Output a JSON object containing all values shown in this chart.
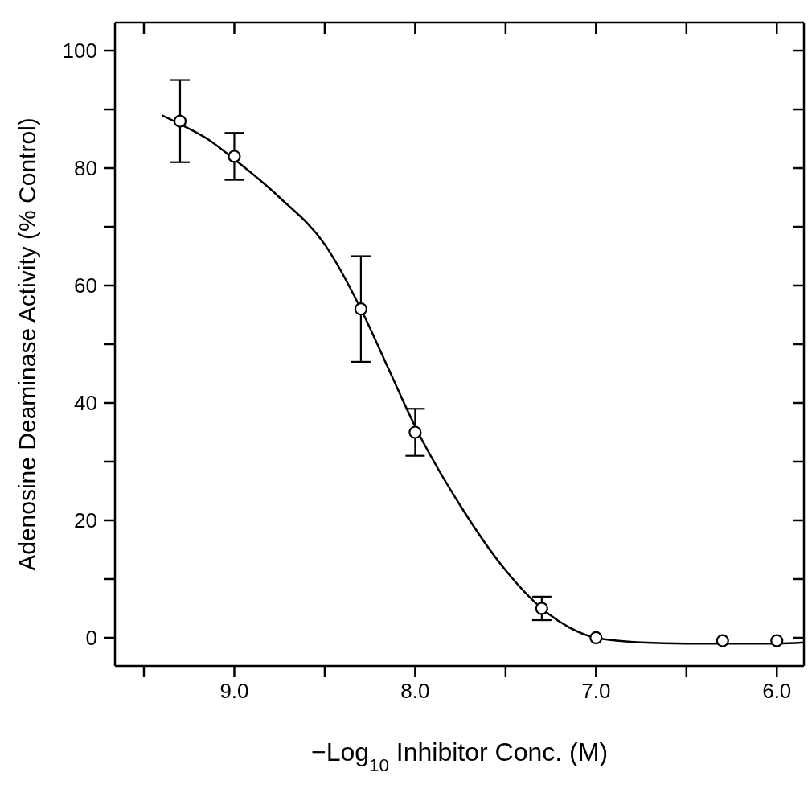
{
  "chart_data": {
    "type": "scatter",
    "xlabel": "−Log$_{10}$ Inhibitor Conc. (M)",
    "ylabel": "Adenosine Deaminase Activity (% Control)",
    "xlim": [
      9.66,
      5.85
    ],
    "xticks": [
      {
        "value": 9.5,
        "label": null
      },
      {
        "value": 9,
        "label": "9.0"
      },
      {
        "value": 8.5,
        "label": null
      },
      {
        "value": 8,
        "label": "8.0"
      },
      {
        "value": 7.5,
        "label": null
      },
      {
        "value": 7,
        "label": "7.0"
      },
      {
        "value": 6.5,
        "label": null
      },
      {
        "value": 6,
        "label": "6.0"
      }
    ],
    "ylim": [
      -4.8,
      104.8
    ],
    "yticks": [
      0,
      {
        "value": 10,
        "label": null
      },
      20,
      {
        "value": 30,
        "label": null
      },
      40,
      {
        "value": 50,
        "label": null
      },
      60,
      {
        "value": 70,
        "label": null
      },
      80,
      {
        "value": 90,
        "label": null
      },
      100
    ],
    "grid": false,
    "legend": false,
    "series": [
      {
        "color": "#000000",
        "marker": "circle",
        "x": [
          9.3,
          9.0,
          8.3,
          8.0,
          7.3,
          7.0,
          6.3,
          6.0
        ],
        "values": [
          88,
          82,
          56,
          35,
          5,
          0,
          -0.5,
          -0.5
        ],
        "errors": [
          [
            81,
            95
          ],
          [
            78,
            86
          ],
          [
            47,
            65
          ],
          [
            31,
            39
          ],
          [
            3,
            7
          ],
          null,
          null,
          null
        ]
      },
      {
        "type": "line",
        "color": "#000000",
        "marker": "none",
        "line_style": "solid",
        "x": [
          9.4,
          9.3,
          9.15,
          9.0,
          8.75,
          8.5,
          8.3,
          8.15,
          8.0,
          7.75,
          7.5,
          7.3,
          7.15,
          7.0,
          6.75,
          6.5,
          6.0,
          5.85
        ],
        "values": [
          89,
          87.5,
          85,
          81.5,
          75,
          67,
          56,
          46,
          36,
          22.5,
          11.5,
          5,
          1.8,
          0,
          -0.8,
          -1,
          -1,
          -0.8
        ]
      }
    ]
  }
}
